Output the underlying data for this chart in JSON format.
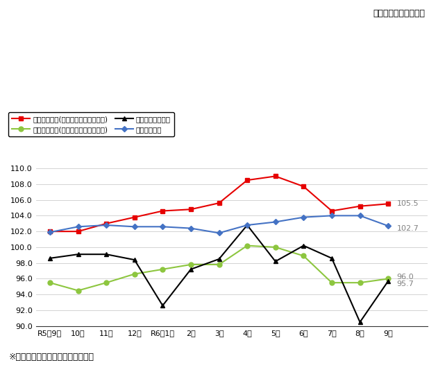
{
  "title_top": "（令和２年＝１００）",
  "x_labels": [
    "R5年9月",
    "10月",
    "11月",
    "12月",
    "R6年1月",
    "2月",
    "3月",
    "4月",
    "5月",
    "6月",
    "7月",
    "8月",
    "9月"
  ],
  "nominal_wage": [
    102.0,
    102.0,
    103.0,
    103.8,
    104.6,
    104.8,
    105.6,
    108.5,
    109.0,
    107.7,
    104.6,
    105.2,
    105.5
  ],
  "real_wage": [
    95.5,
    94.5,
    95.5,
    96.6,
    97.2,
    97.8,
    97.8,
    100.2,
    100.0,
    98.9,
    95.5,
    95.5,
    96.0
  ],
  "labor_hours": [
    98.6,
    99.1,
    99.1,
    98.4,
    92.6,
    97.2,
    98.5,
    102.8,
    98.2,
    100.2,
    98.6,
    90.5,
    95.7
  ],
  "employment": [
    101.9,
    102.6,
    102.8,
    102.6,
    102.6,
    102.4,
    101.8,
    102.8,
    103.2,
    103.8,
    104.0,
    104.0,
    102.7
  ],
  "nominal_color": "#e60000",
  "real_color": "#8dc63f",
  "labor_color": "#000000",
  "employment_color": "#4472c4",
  "ylim": [
    90.0,
    110.0
  ],
  "yticks": [
    90.0,
    92.0,
    94.0,
    96.0,
    98.0,
    100.0,
    102.0,
    104.0,
    106.0,
    108.0,
    110.0
  ],
  "legend_labels": [
    "名目賣金指数(きまって支給する給与)",
    "実質賣金指数(きまって支給する給与)",
    "総実労働時間指数",
    "常用雇用指数"
  ],
  "footnote": "※事業所規模５人以上：調査産業計",
  "end_labels": {
    "nominal": "105.5",
    "employment": "102.7",
    "real": "96.0",
    "labor": "95.7"
  }
}
